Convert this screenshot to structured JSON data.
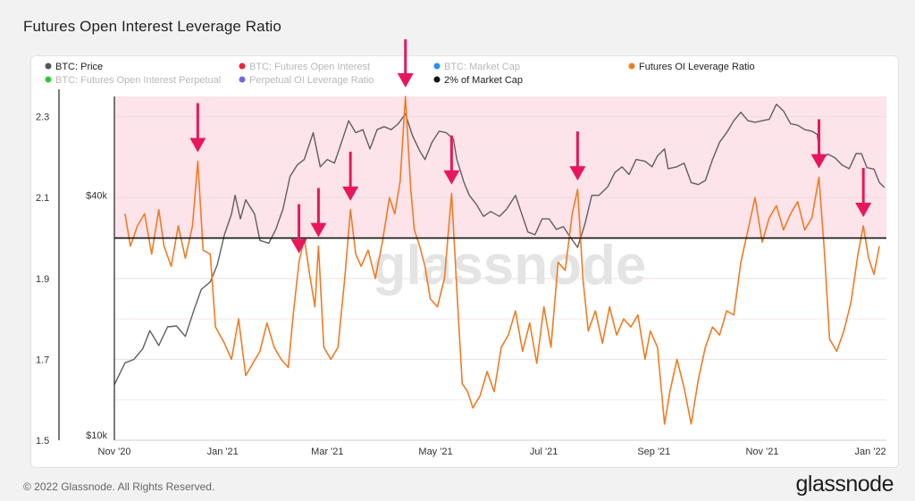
{
  "page": {
    "title": "Futures Open Interest Leverage Ratio",
    "copyright": "© 2022 Glassnode. All Rights Reserved.",
    "brand": "glassnode",
    "watermark": "glassnode"
  },
  "colors": {
    "price": "#5f5f5f",
    "ratio": "#f07c24",
    "zone": "#fde3ea",
    "arrow": "#e8175d",
    "hline": "#111111"
  },
  "chart_data": {
    "type": "line",
    "x_ticks": [
      "Nov '20",
      "Jan '21",
      "Mar '21",
      "May '21",
      "Jul '21",
      "Sep '21",
      "Nov '21",
      "Jan '22"
    ],
    "x_range": [
      "2020-11-01",
      "2022-01-10"
    ],
    "y_left": {
      "ticks": [
        "2.3",
        "2.1",
        "1.9",
        "1.7",
        "1.5"
      ],
      "range": [
        1.5,
        2.35
      ]
    },
    "y_right": {
      "ticks": [
        "$40k",
        "$10k"
      ],
      "scale": "log",
      "range_usd": [
        10000,
        70000
      ]
    },
    "legend": [
      {
        "label": "BTC: Price",
        "color": "#555555",
        "active": true
      },
      {
        "label": "BTC: Futures Open Interest",
        "color": "#e8283c",
        "active": false
      },
      {
        "label": "BTC: Market Cap",
        "color": "#2d8fe8",
        "active": false
      },
      {
        "label": "Futures OI Leverage Ratio",
        "color": "#f07c24",
        "active": true
      },
      {
        "label": "BTC: Futures Open Interest Perpetual",
        "color": "#35c43a",
        "active": false
      },
      {
        "label": "Perpetual OI Leverage Ratio",
        "color": "#6a6adc",
        "active": false
      },
      {
        "label": "2% of Market Cap",
        "color": "#111111",
        "active": true
      }
    ],
    "hline_value": 2.0,
    "shaded_range": [
      2.0,
      2.35
    ],
    "series": [
      {
        "name": "Futures OI Leverage Ratio",
        "axis": "left",
        "points": [
          [
            "2020-11-07",
            2.06
          ],
          [
            "2020-11-10",
            1.98
          ],
          [
            "2020-11-14",
            2.03
          ],
          [
            "2020-11-18",
            2.06
          ],
          [
            "2020-11-22",
            1.96
          ],
          [
            "2020-11-26",
            2.07
          ],
          [
            "2020-11-29",
            1.98
          ],
          [
            "2020-12-03",
            1.93
          ],
          [
            "2020-12-07",
            2.03
          ],
          [
            "2020-12-11",
            1.95
          ],
          [
            "2020-12-15",
            2.03
          ],
          [
            "2020-12-18",
            2.19
          ],
          [
            "2020-12-21",
            1.97
          ],
          [
            "2020-12-25",
            1.96
          ],
          [
            "2020-12-28",
            1.78
          ],
          [
            "2021-01-02",
            1.74
          ],
          [
            "2021-01-06",
            1.7
          ],
          [
            "2021-01-10",
            1.8
          ],
          [
            "2021-01-14",
            1.66
          ],
          [
            "2021-01-18",
            1.69
          ],
          [
            "2021-01-22",
            1.72
          ],
          [
            "2021-01-26",
            1.79
          ],
          [
            "2021-01-30",
            1.73
          ],
          [
            "2021-02-03",
            1.7
          ],
          [
            "2021-02-07",
            1.68
          ],
          [
            "2021-02-10",
            1.82
          ],
          [
            "2021-02-13",
            1.94
          ],
          [
            "2021-02-16",
            2.0
          ],
          [
            "2021-02-19",
            1.91
          ],
          [
            "2021-02-22",
            1.83
          ],
          [
            "2021-02-24",
            1.98
          ],
          [
            "2021-02-27",
            1.73
          ],
          [
            "2021-03-03",
            1.7
          ],
          [
            "2021-03-07",
            1.73
          ],
          [
            "2021-03-11",
            1.91
          ],
          [
            "2021-03-14",
            2.07
          ],
          [
            "2021-03-17",
            1.96
          ],
          [
            "2021-03-20",
            1.93
          ],
          [
            "2021-03-24",
            1.97
          ],
          [
            "2021-03-28",
            1.9
          ],
          [
            "2021-04-01",
            1.99
          ],
          [
            "2021-04-05",
            2.1
          ],
          [
            "2021-04-08",
            2.06
          ],
          [
            "2021-04-11",
            2.14
          ],
          [
            "2021-04-14",
            2.35
          ],
          [
            "2021-04-17",
            2.12
          ],
          [
            "2021-04-19",
            2.02
          ],
          [
            "2021-04-22",
            1.98
          ],
          [
            "2021-04-25",
            1.93
          ],
          [
            "2021-04-28",
            1.85
          ],
          [
            "2021-05-02",
            1.83
          ],
          [
            "2021-05-06",
            1.9
          ],
          [
            "2021-05-10",
            2.11
          ],
          [
            "2021-05-13",
            1.87
          ],
          [
            "2021-05-16",
            1.64
          ],
          [
            "2021-05-19",
            1.62
          ],
          [
            "2021-05-22",
            1.58
          ],
          [
            "2021-05-26",
            1.61
          ],
          [
            "2021-05-30",
            1.67
          ],
          [
            "2021-06-03",
            1.62
          ],
          [
            "2021-06-07",
            1.73
          ],
          [
            "2021-06-11",
            1.76
          ],
          [
            "2021-06-15",
            1.82
          ],
          [
            "2021-06-19",
            1.72
          ],
          [
            "2021-06-23",
            1.79
          ],
          [
            "2021-06-27",
            1.69
          ],
          [
            "2021-07-01",
            1.83
          ],
          [
            "2021-07-05",
            1.73
          ],
          [
            "2021-07-09",
            1.94
          ],
          [
            "2021-07-13",
            1.92
          ],
          [
            "2021-07-17",
            2.06
          ],
          [
            "2021-07-20",
            2.12
          ],
          [
            "2021-07-23",
            1.9
          ],
          [
            "2021-07-26",
            1.77
          ],
          [
            "2021-07-30",
            1.82
          ],
          [
            "2021-08-03",
            1.74
          ],
          [
            "2021-08-07",
            1.83
          ],
          [
            "2021-08-11",
            1.76
          ],
          [
            "2021-08-15",
            1.8
          ],
          [
            "2021-08-19",
            1.78
          ],
          [
            "2021-08-23",
            1.81
          ],
          [
            "2021-08-27",
            1.7
          ],
          [
            "2021-08-30",
            1.77
          ],
          [
            "2021-09-03",
            1.73
          ],
          [
            "2021-09-07",
            1.54
          ],
          [
            "2021-09-10",
            1.62
          ],
          [
            "2021-09-14",
            1.7
          ],
          [
            "2021-09-18",
            1.63
          ],
          [
            "2021-09-22",
            1.54
          ],
          [
            "2021-09-26",
            1.65
          ],
          [
            "2021-09-30",
            1.73
          ],
          [
            "2021-10-04",
            1.78
          ],
          [
            "2021-10-08",
            1.76
          ],
          [
            "2021-10-12",
            1.82
          ],
          [
            "2021-10-16",
            1.81
          ],
          [
            "2021-10-20",
            1.94
          ],
          [
            "2021-10-24",
            2.02
          ],
          [
            "2021-10-28",
            2.1
          ],
          [
            "2021-11-01",
            1.99
          ],
          [
            "2021-11-05",
            2.05
          ],
          [
            "2021-11-09",
            2.08
          ],
          [
            "2021-11-13",
            2.02
          ],
          [
            "2021-11-17",
            2.06
          ],
          [
            "2021-11-21",
            2.09
          ],
          [
            "2021-11-25",
            2.02
          ],
          [
            "2021-11-29",
            2.05
          ],
          [
            "2021-12-03",
            2.15
          ],
          [
            "2021-12-06",
            1.97
          ],
          [
            "2021-12-09",
            1.75
          ],
          [
            "2021-12-13",
            1.72
          ],
          [
            "2021-12-17",
            1.77
          ],
          [
            "2021-12-21",
            1.84
          ],
          [
            "2021-12-25",
            1.96
          ],
          [
            "2021-12-28",
            2.03
          ],
          [
            "2021-12-31",
            1.95
          ],
          [
            "2022-01-03",
            1.91
          ],
          [
            "2022-01-06",
            1.98
          ]
        ]
      },
      {
        "name": "BTC: Price",
        "axis": "right",
        "points": [
          [
            "2020-11-01",
            13700
          ],
          [
            "2020-11-07",
            15500
          ],
          [
            "2020-11-12",
            15800
          ],
          [
            "2020-11-17",
            16800
          ],
          [
            "2020-11-21",
            18600
          ],
          [
            "2020-11-26",
            17100
          ],
          [
            "2020-12-01",
            19000
          ],
          [
            "2020-12-06",
            19100
          ],
          [
            "2020-12-11",
            18000
          ],
          [
            "2020-12-16",
            21000
          ],
          [
            "2020-12-20",
            23500
          ],
          [
            "2020-12-25",
            24500
          ],
          [
            "2020-12-29",
            27000
          ],
          [
            "2021-01-02",
            32000
          ],
          [
            "2021-01-06",
            36000
          ],
          [
            "2021-01-08",
            40000
          ],
          [
            "2021-01-11",
            35000
          ],
          [
            "2021-01-14",
            39000
          ],
          [
            "2021-01-19",
            36000
          ],
          [
            "2021-01-22",
            31000
          ],
          [
            "2021-01-27",
            30500
          ],
          [
            "2021-01-31",
            33000
          ],
          [
            "2021-02-04",
            37000
          ],
          [
            "2021-02-08",
            44500
          ],
          [
            "2021-02-12",
            47500
          ],
          [
            "2021-02-16",
            49000
          ],
          [
            "2021-02-21",
            57000
          ],
          [
            "2021-02-25",
            47000
          ],
          [
            "2021-03-01",
            49000
          ],
          [
            "2021-03-05",
            48000
          ],
          [
            "2021-03-09",
            54000
          ],
          [
            "2021-03-13",
            61000
          ],
          [
            "2021-03-17",
            57000
          ],
          [
            "2021-03-21",
            58000
          ],
          [
            "2021-03-25",
            52000
          ],
          [
            "2021-03-29",
            58000
          ],
          [
            "2021-04-02",
            59000
          ],
          [
            "2021-04-06",
            58000
          ],
          [
            "2021-04-10",
            60000
          ],
          [
            "2021-04-14",
            63500
          ],
          [
            "2021-04-18",
            56000
          ],
          [
            "2021-04-22",
            51500
          ],
          [
            "2021-04-25",
            49000
          ],
          [
            "2021-04-29",
            54000
          ],
          [
            "2021-05-03",
            57500
          ],
          [
            "2021-05-07",
            57000
          ],
          [
            "2021-05-11",
            55000
          ],
          [
            "2021-05-13",
            49000
          ],
          [
            "2021-05-17",
            43000
          ],
          [
            "2021-05-20",
            40000
          ],
          [
            "2021-05-24",
            38000
          ],
          [
            "2021-05-28",
            35500
          ],
          [
            "2021-06-01",
            36500
          ],
          [
            "2021-06-06",
            35500
          ],
          [
            "2021-06-10",
            37000
          ],
          [
            "2021-06-15",
            40000
          ],
          [
            "2021-06-19",
            35500
          ],
          [
            "2021-06-22",
            32500
          ],
          [
            "2021-06-26",
            32000
          ],
          [
            "2021-06-30",
            35000
          ],
          [
            "2021-07-04",
            35000
          ],
          [
            "2021-07-08",
            33000
          ],
          [
            "2021-07-12",
            33500
          ],
          [
            "2021-07-16",
            31500
          ],
          [
            "2021-07-20",
            29800
          ],
          [
            "2021-07-24",
            33800
          ],
          [
            "2021-07-28",
            40000
          ],
          [
            "2021-08-01",
            40000
          ],
          [
            "2021-08-06",
            42000
          ],
          [
            "2021-08-10",
            45500
          ],
          [
            "2021-08-14",
            47000
          ],
          [
            "2021-08-18",
            45000
          ],
          [
            "2021-08-22",
            49000
          ],
          [
            "2021-08-27",
            48500
          ],
          [
            "2021-08-31",
            47000
          ],
          [
            "2021-09-03",
            50000
          ],
          [
            "2021-09-07",
            52000
          ],
          [
            "2021-09-09",
            46500
          ],
          [
            "2021-09-14",
            47000
          ],
          [
            "2021-09-18",
            48000
          ],
          [
            "2021-09-22",
            43000
          ],
          [
            "2021-09-26",
            42500
          ],
          [
            "2021-09-30",
            43500
          ],
          [
            "2021-10-04",
            49000
          ],
          [
            "2021-10-08",
            54000
          ],
          [
            "2021-10-12",
            57000
          ],
          [
            "2021-10-16",
            61000
          ],
          [
            "2021-10-20",
            64000
          ],
          [
            "2021-10-24",
            61000
          ],
          [
            "2021-10-28",
            60500
          ],
          [
            "2021-11-01",
            61000
          ],
          [
            "2021-11-05",
            61500
          ],
          [
            "2021-11-09",
            67000
          ],
          [
            "2021-11-13",
            64500
          ],
          [
            "2021-11-17",
            60000
          ],
          [
            "2021-11-21",
            59500
          ],
          [
            "2021-11-25",
            58000
          ],
          [
            "2021-11-29",
            57500
          ],
          [
            "2021-12-02",
            56500
          ],
          [
            "2021-12-04",
            49000
          ],
          [
            "2021-12-08",
            50500
          ],
          [
            "2021-12-12",
            49500
          ],
          [
            "2021-12-16",
            47500
          ],
          [
            "2021-12-20",
            46500
          ],
          [
            "2021-12-24",
            50700
          ],
          [
            "2021-12-27",
            50600
          ],
          [
            "2021-12-30",
            46800
          ],
          [
            "2022-01-03",
            46400
          ],
          [
            "2022-01-06",
            43000
          ],
          [
            "2022-01-09",
            41800
          ]
        ]
      }
    ],
    "annotations": {
      "arrow_dates": [
        "2020-12-18",
        "2021-02-13",
        "2021-02-24",
        "2021-03-14",
        "2021-04-14",
        "2021-05-10",
        "2021-07-20",
        "2021-12-03",
        "2021-12-28"
      ]
    }
  }
}
